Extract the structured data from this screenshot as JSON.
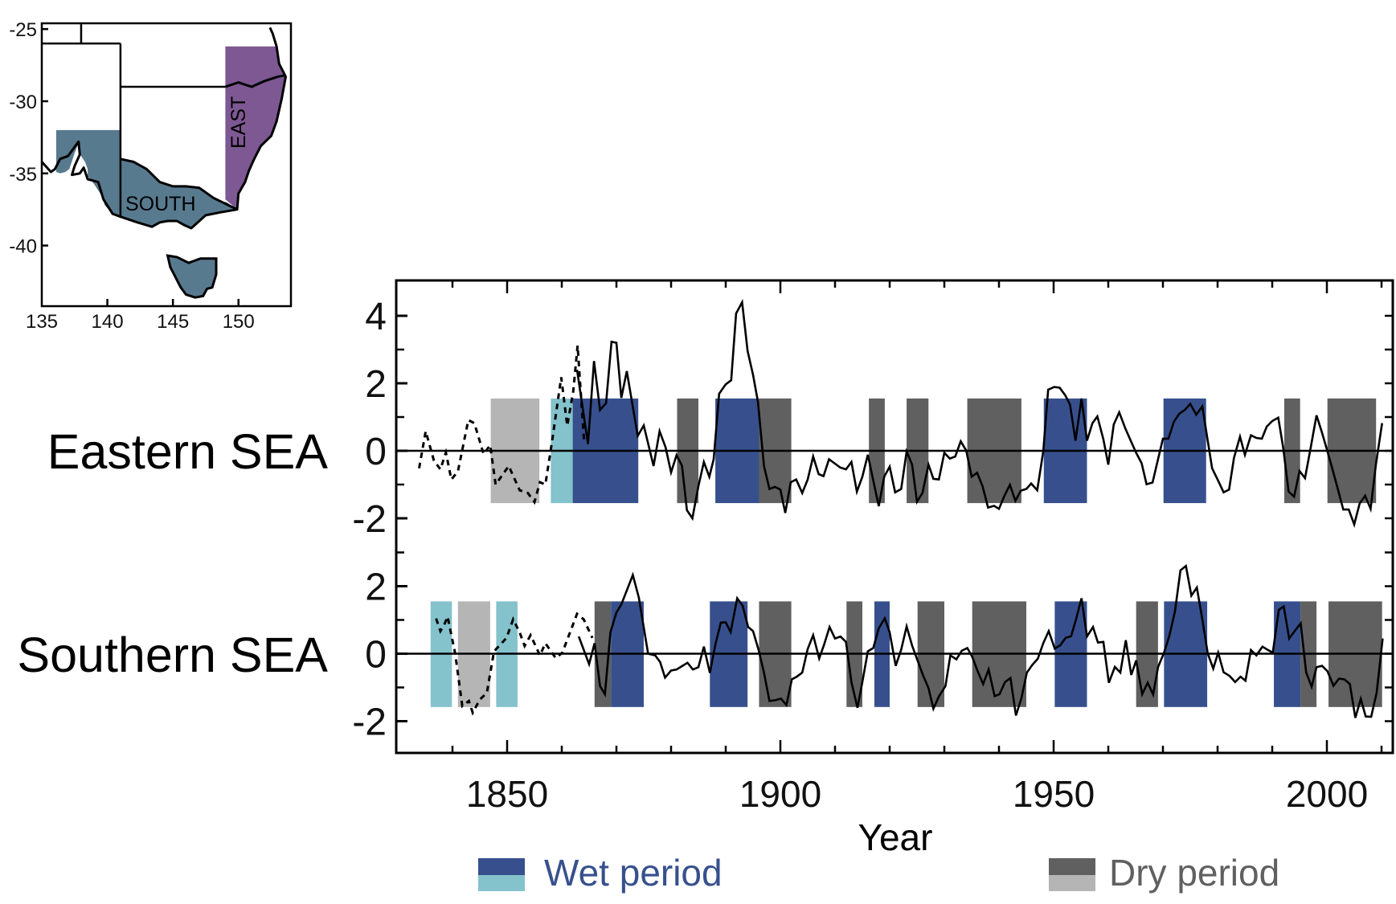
{
  "map": {
    "xlabels": [
      "135",
      "140",
      "145",
      "150"
    ],
    "xticks": [
      135,
      140,
      145,
      150
    ],
    "ylabels": [
      "-25",
      "-30",
      "-35",
      "-40"
    ],
    "yticks": [
      -25,
      -30,
      -35,
      -40
    ],
    "lon_range": [
      135,
      154
    ],
    "lat_range": [
      -44.2,
      -24.6
    ],
    "regions": [
      {
        "name": "EAST",
        "color": "#7d5893"
      },
      {
        "name": "SOUTH",
        "color": "#587a8f"
      }
    ]
  },
  "chart_data": {
    "type": "line",
    "title": "",
    "xlabel": "Year",
    "ylabel": "",
    "xlim": [
      1829.6,
      2012
    ],
    "xticks": [
      1850,
      1900,
      1950,
      2000
    ],
    "xtick_labels": [
      "1850",
      "1900",
      "1950",
      "2000"
    ],
    "xminor_step": 10,
    "grid": false,
    "legend": {
      "placement": "bottom",
      "entries": [
        {
          "label": "Wet period",
          "colors": [
            "#37508d",
            "#84c2cc"
          ],
          "text_color": "#37508d"
        },
        {
          "label": "Dry period",
          "colors": [
            "#5f605f",
            "#b5b5b5"
          ],
          "text_color": "#5f605f"
        }
      ]
    },
    "colors": {
      "wet": "#37508d",
      "wet_early": "#84c2cc",
      "dry": "#5f605f",
      "dry_early": "#b5b5b5",
      "line": "#000000"
    },
    "panels": [
      {
        "label": "Eastern SEA",
        "ylim": [
          -2.9,
          5.1
        ],
        "yticks": [
          4,
          2,
          0,
          -2
        ],
        "ytick_labels": [
          "4",
          "2",
          "0",
          "-2"
        ],
        "yminor": [
          3,
          1,
          -1
        ],
        "band": [
          -1.55,
          1.55
        ],
        "periods": [
          {
            "type": "dry_early",
            "start": 1847.0,
            "end": 1855.9
          },
          {
            "type": "wet_early",
            "start": 1858.0,
            "end": 1862.0
          },
          {
            "type": "wet",
            "start": 1862.0,
            "end": 1874.0
          },
          {
            "type": "dry",
            "start": 1881.1,
            "end": 1885.0
          },
          {
            "type": "wet",
            "start": 1888.1,
            "end": 1896.1
          },
          {
            "type": "dry",
            "start": 1896.1,
            "end": 1902.0
          },
          {
            "type": "dry",
            "start": 1916.2,
            "end": 1919.1
          },
          {
            "type": "dry",
            "start": 1923.1,
            "end": 1927.1
          },
          {
            "type": "dry",
            "start": 1934.2,
            "end": 1944.1
          },
          {
            "type": "wet",
            "start": 1948.2,
            "end": 1956.1
          },
          {
            "type": "wet",
            "start": 1970.1,
            "end": 1977.9
          },
          {
            "type": "dry",
            "start": 1992.2,
            "end": 1995.1
          },
          {
            "type": "dry",
            "start": 2000.1,
            "end": 2009.0
          }
        ],
        "reconstructed": {
          "style": "dashed",
          "x": [
            1833.9,
            1835.1,
            1836.6,
            1837.8,
            1838.8,
            1839.8,
            1841.0,
            1842.9,
            1844.0,
            1845.7,
            1846.9,
            1847.9,
            1850.3,
            1852.3,
            1853.8,
            1855.0,
            1856.0,
            1857.0,
            1858.2,
            1859.9,
            1861.0,
            1862.1,
            1862.9,
            1864.1
          ],
          "y": [
            -0.52,
            0.58,
            -0.29,
            -0.55,
            -0.05,
            -0.85,
            -0.61,
            0.91,
            0.82,
            -0.1,
            0.17,
            -1.0,
            -0.45,
            -1.17,
            -1.25,
            -1.52,
            -0.93,
            -1.0,
            0.26,
            2.18,
            0.74,
            1.77,
            3.12,
            0.22
          ]
        },
        "observed": {
          "style": "solid",
          "x": [
            1862.8,
            1864.8,
            1865.9,
            1867.0,
            1868.1,
            1869.1,
            1870.0,
            1870.9,
            1871.9,
            1873.9,
            1875.0,
            1876.8,
            1877.9,
            1879.0,
            1880.0,
            1881.0,
            1882.0,
            1882.9,
            1883.9,
            1885.0,
            1886.0,
            1887.0,
            1887.8,
            1888.8,
            1890.0,
            1891.0,
            1891.9,
            1893.0,
            1894.0,
            1895.0,
            1895.9,
            1897.0,
            1898.0,
            1899.0,
            1900.0,
            1900.9,
            1901.9,
            1902.9,
            1904.0,
            1905.0,
            1906.0,
            1907.0,
            1907.9,
            1908.9,
            1909.9,
            1910.9,
            1912.0,
            1913.0,
            1914.0,
            1915.0,
            1916.0,
            1918.0,
            1919.0,
            1920.0,
            1921.0,
            1922.1,
            1923.1,
            1924.1,
            1925.0,
            1926.0,
            1927.1,
            1928.0,
            1929.0,
            1930.0,
            1931.0,
            1932.0,
            1933.0,
            1934.0,
            1935.0,
            1936.0,
            1937.0,
            1938.0,
            1939.1,
            1940.0,
            1941.0,
            1942.0,
            1943.0,
            1944.0,
            1945.0,
            1945.9,
            1947.0,
            1948.1,
            1949.0,
            1950.1,
            1951.1,
            1952.1,
            1953.0,
            1954.0,
            1955.1,
            1956.1,
            1957.1,
            1958.0,
            1959.1,
            1960.0,
            1961.0,
            1962.0,
            1963.1,
            1964.1,
            1965.1,
            1966.1,
            1967.0,
            1968.1,
            1969.1,
            1970.0,
            1971.0,
            1972.0,
            1973.0,
            1974.0,
            1975.0,
            1976.1,
            1977.2,
            1978.0,
            1979.0,
            1980.0,
            1981.1,
            1982.1,
            1983.0,
            1984.1,
            1985.0,
            1986.1,
            1987.1,
            1988.1,
            1989.0,
            1990.0,
            1991.1,
            1992.0,
            1993.0,
            1994.0,
            1995.0,
            1996.0,
            1997.0,
            1998.1,
            1999.1,
            2000.1,
            2001.0,
            2002.0,
            2003.0,
            2004.0,
            2005.0,
            2006.0,
            2007.0,
            2008.0,
            2009.0,
            2010.1
          ],
          "y": [
            2.4,
            0.2,
            2.66,
            1.21,
            1.41,
            3.23,
            3.2,
            1.57,
            2.36,
            0.44,
            0.75,
            -0.45,
            0.58,
            0.1,
            -0.64,
            -0.13,
            -0.44,
            -1.76,
            -2.0,
            -1.05,
            -0.33,
            -0.77,
            -0.25,
            1.69,
            1.97,
            2.09,
            4.07,
            4.4,
            2.96,
            2.25,
            1.45,
            -0.45,
            -1.13,
            -1.07,
            -1.15,
            -1.84,
            -0.93,
            -0.85,
            -1.25,
            -0.85,
            -0.17,
            -0.69,
            -0.75,
            -0.25,
            -0.37,
            -0.49,
            -0.55,
            -0.33,
            -1.21,
            -0.77,
            -0.12,
            -1.64,
            -0.77,
            -0.47,
            -1.23,
            -1.13,
            -0.02,
            -0.41,
            -1.51,
            -1.25,
            -0.41,
            -0.83,
            -0.85,
            -0.06,
            -0.23,
            -0.17,
            0.28,
            0.01,
            -0.77,
            -0.65,
            -1.05,
            -1.68,
            -1.63,
            -1.72,
            -1.33,
            -1.01,
            -1.48,
            -1.18,
            -1.13,
            -0.97,
            -1.17,
            -0.02,
            1.81,
            1.89,
            1.87,
            1.65,
            1.37,
            0.3,
            1.55,
            0.3,
            0.82,
            1.02,
            0.34,
            -0.41,
            0.78,
            1.14,
            0.67,
            0.3,
            -0.06,
            -0.37,
            -0.99,
            -0.94,
            -0.25,
            0.36,
            0.36,
            0.86,
            1.1,
            1.21,
            1.39,
            1.07,
            1.32,
            0.5,
            -0.52,
            -0.85,
            -1.23,
            -1.15,
            -0.21,
            0.42,
            -0.12,
            0.46,
            0.38,
            0.36,
            0.72,
            0.88,
            0.98,
            0.1,
            -1.21,
            -1.36,
            -0.6,
            -0.81,
            0.06,
            1.05,
            0.54,
            -0.02,
            -0.53,
            -1.13,
            -1.74,
            -1.74,
            -2.18,
            -1.56,
            -1.33,
            -1.72,
            -0.37,
            0.82
          ]
        }
      },
      {
        "label": "Southern SEA",
        "ylim": [
          -3.1,
          3.1
        ],
        "yticks": [
          2,
          0,
          -2
        ],
        "ytick_labels": [
          "2",
          "0",
          "-2"
        ],
        "yminor": [
          3,
          1,
          -1
        ],
        "band": [
          -1.58,
          1.55
        ],
        "periods": [
          {
            "type": "wet_early",
            "start": 1836.0,
            "end": 1839.9
          },
          {
            "type": "dry_early",
            "start": 1841.0,
            "end": 1846.9
          },
          {
            "type": "wet_early",
            "start": 1848.0,
            "end": 1851.9
          },
          {
            "type": "dry",
            "start": 1866.0,
            "end": 1869.0
          },
          {
            "type": "wet",
            "start": 1869.0,
            "end": 1875.0
          },
          {
            "type": "wet",
            "start": 1887.1,
            "end": 1894.0
          },
          {
            "type": "dry",
            "start": 1896.1,
            "end": 1902.0
          },
          {
            "type": "dry",
            "start": 1912.1,
            "end": 1915.0
          },
          {
            "type": "wet",
            "start": 1917.2,
            "end": 1920.0
          },
          {
            "type": "dry",
            "start": 1925.1,
            "end": 1930.0
          },
          {
            "type": "dry",
            "start": 1935.1,
            "end": 1945.0
          },
          {
            "type": "wet",
            "start": 1950.2,
            "end": 1956.1
          },
          {
            "type": "dry",
            "start": 1965.1,
            "end": 1969.1
          },
          {
            "type": "wet",
            "start": 1970.2,
            "end": 1978.1
          },
          {
            "type": "wet",
            "start": 1990.3,
            "end": 1995.2
          },
          {
            "type": "dry",
            "start": 1995.2,
            "end": 1998.1
          },
          {
            "type": "dry",
            "start": 2000.3,
            "end": 2010.1
          }
        ],
        "reconstructed": {
          "style": "dashed",
          "x": [
            1837.0,
            1837.8,
            1838.6,
            1839.1,
            1840.5,
            1841.8,
            1843.0,
            1843.7,
            1845.0,
            1846.3,
            1847.6,
            1849.9,
            1851.1,
            1852.3,
            1853.2,
            1854.3,
            1856.0,
            1857.0,
            1858.9,
            1860.1,
            1862.8,
            1864.0,
            1865.6
          ],
          "y": [
            1.04,
            0.67,
            0.9,
            1.1,
            0.0,
            -1.55,
            -1.4,
            -1.75,
            -1.36,
            -1.16,
            0.07,
            0.47,
            1.02,
            0.63,
            0.23,
            0.55,
            -0.05,
            0.31,
            -0.13,
            0.03,
            1.18,
            1.02,
            0.47
          ]
        },
        "observed": {
          "style": "solid",
          "x": [
            1863.1,
            1865.0,
            1866.0,
            1867.0,
            1867.9,
            1868.9,
            1870.0,
            1870.9,
            1873.0,
            1874.1,
            1875.8,
            1877.1,
            1878.0,
            1878.9,
            1880.0,
            1881.0,
            1882.0,
            1883.0,
            1884.0,
            1885.0,
            1886.0,
            1887.1,
            1888.1,
            1889.1,
            1890.0,
            1890.9,
            1892.1,
            1893.1,
            1894.1,
            1895.0,
            1896.0,
            1897.0,
            1898.0,
            1899.0,
            1900.1,
            1901.1,
            1902.1,
            1903.0,
            1904.0,
            1905.0,
            1906.0,
            1907.1,
            1908.0,
            1909.0,
            1910.0,
            1911.0,
            1912.0,
            1913.0,
            1914.1,
            1915.0,
            1916.0,
            1917.0,
            1918.0,
            1919.1,
            1920.0,
            1921.1,
            1922.1,
            1923.1,
            1924.1,
            1925.1,
            1926.1,
            1927.1,
            1928.0,
            1929.0,
            1930.2,
            1931.1,
            1932.2,
            1933.2,
            1934.2,
            1935.1,
            1936.1,
            1937.1,
            1938.1,
            1939.2,
            1940.1,
            1941.1,
            1942.1,
            1943.1,
            1944.1,
            1945.1,
            1946.1,
            1947.1,
            1948.1,
            1949.1,
            1950.2,
            1951.2,
            1952.2,
            1953.2,
            1954.1,
            1955.1,
            1956.1,
            1957.2,
            1958.1,
            1959.1,
            1960.1,
            1961.2,
            1962.2,
            1963.2,
            1964.2,
            1965.1,
            1966.2,
            1967.2,
            1968.2,
            1969.1,
            1970.2,
            1971.2,
            1972.2,
            1973.2,
            1974.2,
            1975.2,
            1976.2,
            1977.2,
            1978.2,
            1979.2,
            1980.1,
            1981.1,
            1982.2,
            1983.2,
            1984.2,
            1985.1,
            1986.1,
            1987.1,
            1988.2,
            1989.2,
            1990.1,
            1991.2,
            1992.1,
            1993.1,
            1994.1,
            1995.2,
            1996.2,
            1997.2,
            1998.1,
            1999.1,
            2000.1,
            2001.2,
            2002.2,
            2003.2,
            2004.2,
            2005.2,
            2006.2,
            2007.1,
            2008.1,
            2009.1,
            2010.2
          ],
          "y": [
            0.51,
            -0.31,
            0.31,
            -0.96,
            -1.2,
            0.63,
            1.22,
            1.46,
            2.33,
            1.66,
            0.0,
            -0.05,
            -0.25,
            -0.71,
            -0.5,
            -0.47,
            -0.37,
            -0.27,
            -0.47,
            -0.4,
            0.21,
            -0.57,
            0.27,
            0.92,
            0.93,
            0.64,
            1.64,
            1.42,
            0.79,
            0.67,
            0.12,
            -0.56,
            -1.4,
            -1.38,
            -1.33,
            -1.52,
            -0.76,
            -0.68,
            -0.56,
            0.14,
            0.55,
            -0.14,
            0.27,
            0.79,
            0.45,
            0.51,
            0.35,
            -0.84,
            -1.6,
            -0.84,
            0.07,
            0.17,
            0.75,
            1.05,
            0.63,
            -0.36,
            0.12,
            0.81,
            0.24,
            -0.2,
            -0.64,
            -1.02,
            -1.63,
            -1.27,
            -0.96,
            -0.05,
            -0.17,
            0.09,
            0.17,
            -0.09,
            -0.52,
            -0.9,
            -0.47,
            -1.26,
            -1.2,
            -0.84,
            -0.72,
            -1.83,
            -1.32,
            -0.56,
            -0.33,
            -0.15,
            0.31,
            0.67,
            0.15,
            0.25,
            0.47,
            0.52,
            1.02,
            1.64,
            0.51,
            0.79,
            0.33,
            0.35,
            -0.86,
            -0.39,
            -0.56,
            0.4,
            -0.63,
            -0.2,
            -1.2,
            -0.86,
            -1.21,
            -0.4,
            0.03,
            0.55,
            1.26,
            2.47,
            2.6,
            1.72,
            1.96,
            1.02,
            0.0,
            -0.44,
            0.03,
            -0.55,
            -0.66,
            -0.84,
            -0.68,
            -0.8,
            0.11,
            -0.05,
            0.21,
            0.11,
            0.03,
            1.3,
            1.4,
            0.45,
            0.67,
            0.9,
            -0.55,
            -0.98,
            -0.4,
            -0.36,
            -0.52,
            -0.95,
            -0.74,
            -0.76,
            -0.9,
            -1.9,
            -1.34,
            -1.86,
            -1.87,
            -1.16,
            0.45
          ]
        }
      }
    ]
  }
}
